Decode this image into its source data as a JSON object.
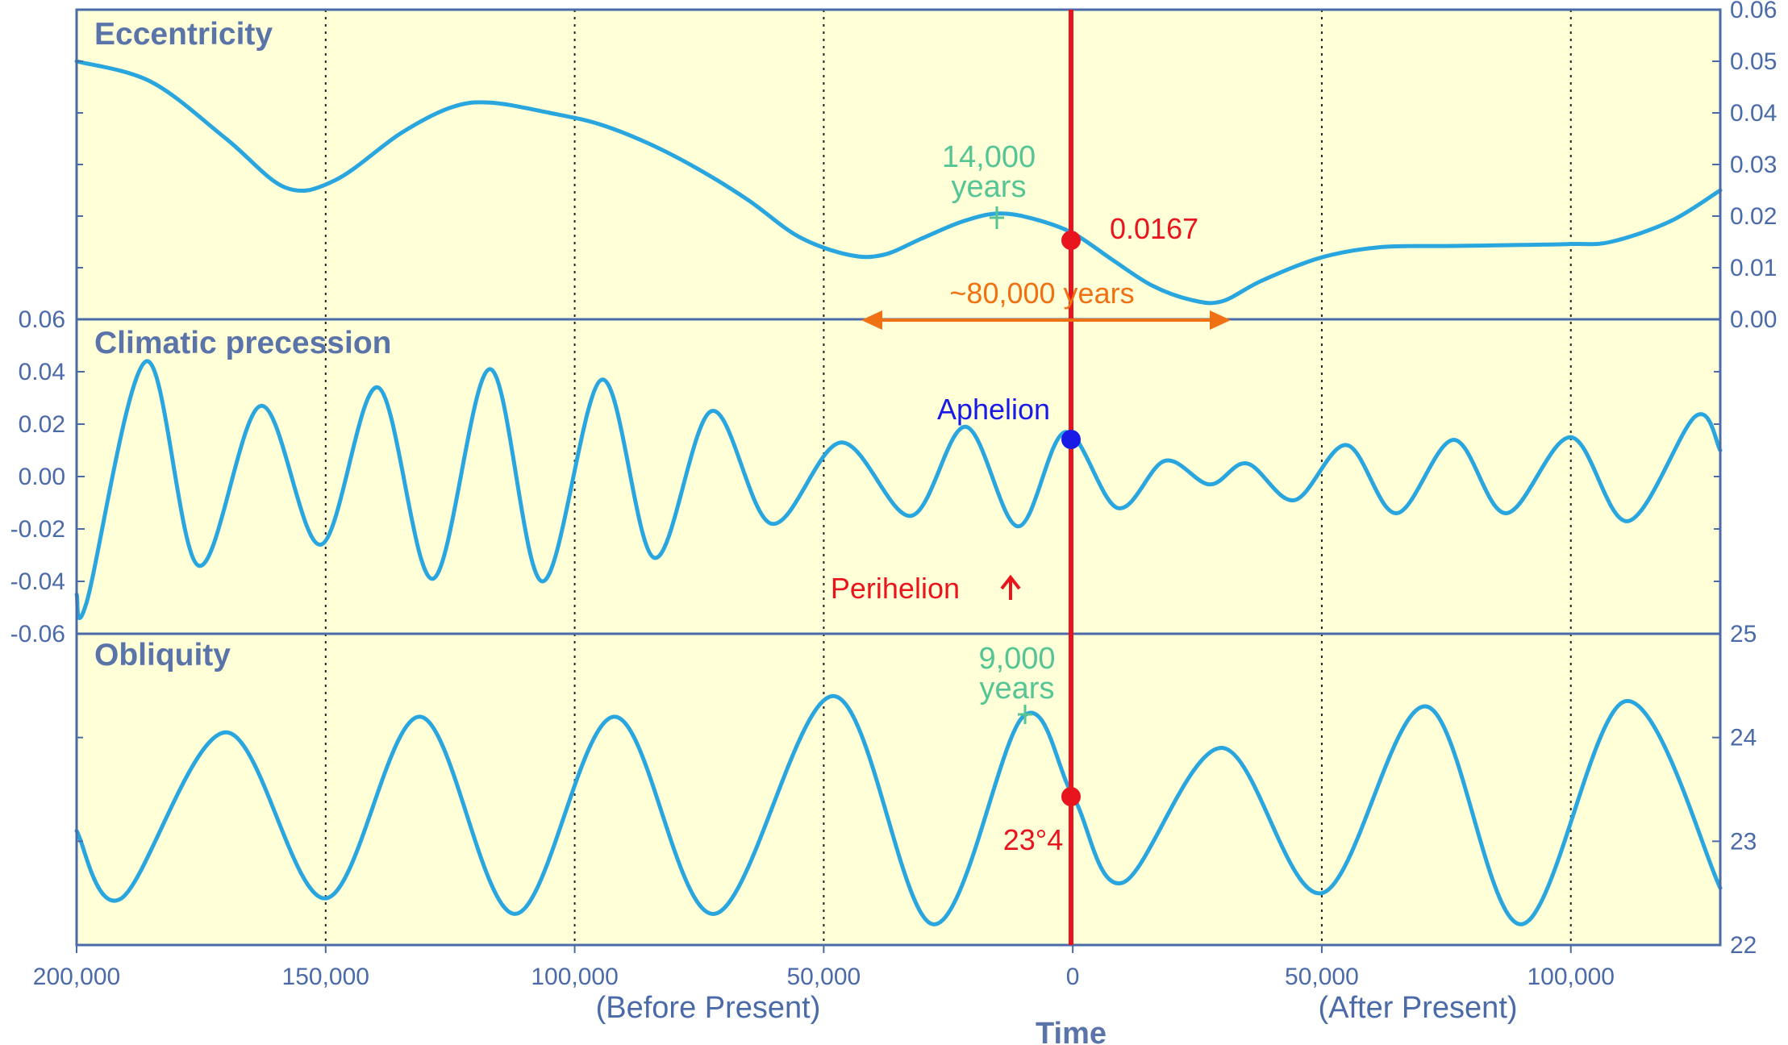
{
  "chart_data": {
    "type": "line",
    "x_axis": {
      "title": "Time",
      "range": [
        -200000,
        130000
      ],
      "ticks": [
        -200000,
        -150000,
        -100000,
        -50000,
        0,
        50000,
        100000
      ],
      "tick_labels": [
        "200,000",
        "150,000",
        "100,000",
        "50,000",
        "0",
        "50,000",
        "100,000"
      ],
      "captions": [
        "(Before Present)",
        "(After Present)"
      ],
      "grid": "dotted vertical at each tick"
    },
    "present_marker": {
      "x": 0,
      "color": "#e8141e"
    },
    "panels": [
      {
        "name": "Eccentricity",
        "axis_side": "right",
        "ylim": [
          0.0,
          0.06
        ],
        "ticks": [
          0.0,
          0.01,
          0.02,
          0.03,
          0.04,
          0.05,
          0.06
        ],
        "tick_labels": [
          "0.00",
          "0.01",
          "0.02",
          "0.03",
          "0.04",
          "0.05",
          "0.06"
        ],
        "series": {
          "x": [
            -200000,
            -185000,
            -170000,
            -158000,
            -148000,
            -135000,
            -125000,
            -117000,
            -105000,
            -95000,
            -85000,
            -75000,
            -65000,
            -55000,
            -45000,
            -38000,
            -30000,
            -22000,
            -15000,
            -8000,
            0,
            8000,
            16000,
            24000,
            30000,
            38000,
            50000,
            62000,
            75000,
            90000,
            100000,
            108000,
            120000,
            130000
          ],
          "y": [
            0.05,
            0.046,
            0.035,
            0.0255,
            0.027,
            0.036,
            0.041,
            0.042,
            0.04,
            0.0378,
            0.034,
            0.029,
            0.023,
            0.016,
            0.0125,
            0.0125,
            0.0158,
            0.019,
            0.0205,
            0.0195,
            0.0167,
            0.0115,
            0.0065,
            0.0037,
            0.0035,
            0.0075,
            0.012,
            0.014,
            0.0142,
            0.0144,
            0.0146,
            0.015,
            0.019,
            0.025
          ]
        },
        "annotations": [
          {
            "text": "14,000",
            "x": -16000,
            "y": 0.0258
          },
          {
            "text": "years",
            "x": -16000,
            "y": 0.0258
          },
          {
            "text": "0.0167",
            "x": 0,
            "y": 0.0167,
            "role": "present-value"
          },
          {
            "text": "~80,000 years",
            "from": -41000,
            "to": 31000,
            "role": "span-arrow"
          }
        ]
      },
      {
        "name": "Climatic precession",
        "axis_side": "left",
        "ylim": [
          -0.06,
          0.06
        ],
        "ticks": [
          -0.06,
          -0.04,
          -0.02,
          0.0,
          0.02,
          0.04,
          0.06
        ],
        "tick_labels": [
          "-0.06",
          "-0.04",
          "-0.02",
          "0.00",
          "0.02",
          "0.04",
          "0.06"
        ],
        "series": {
          "x": [
            -200000,
            -198000,
            -186000,
            -175500,
            -163000,
            -151000,
            -139500,
            -128500,
            -117000,
            -106500,
            -94500,
            -84000,
            -72500,
            -60500,
            -46500,
            -32500,
            -21500,
            -11000,
            -1500,
            9000,
            18500,
            27500,
            35000,
            44500,
            55000,
            65000,
            76500,
            87000,
            100000,
            111500,
            125000,
            130000
          ],
          "y": [
            -0.045,
            -0.048,
            0.044,
            -0.034,
            0.027,
            -0.026,
            0.034,
            -0.039,
            0.041,
            -0.04,
            0.037,
            -0.031,
            0.025,
            -0.018,
            0.013,
            -0.015,
            0.019,
            -0.019,
            0.017,
            -0.012,
            0.006,
            -0.003,
            0.005,
            -0.009,
            0.012,
            -0.014,
            0.014,
            -0.014,
            0.015,
            -0.017,
            0.023,
            0.01
          ]
        },
        "annotations": [
          {
            "text": "Aphelion",
            "x": 0,
            "y": 0.014
          },
          {
            "text": "Perihelion",
            "arrow": "up"
          }
        ]
      },
      {
        "name": "Obliquity",
        "axis_side": "right",
        "ylim": [
          22.0,
          25.0
        ],
        "ticks": [
          22,
          23,
          24,
          25
        ],
        "tick_labels": [
          "22",
          "23",
          "24",
          "25"
        ],
        "series": {
          "x": [
            -200000,
            -191000,
            -170000,
            -150000,
            -131000,
            -112000,
            -92000,
            -72000,
            -48000,
            -28000,
            -10000,
            0,
            10000,
            30000,
            50000,
            71000,
            90000,
            111000,
            130000
          ],
          "y": [
            23.1,
            22.45,
            24.05,
            22.45,
            24.2,
            22.3,
            24.2,
            22.3,
            24.4,
            22.2,
            24.2,
            23.44,
            22.6,
            23.9,
            22.5,
            24.3,
            22.2,
            24.35,
            22.55
          ]
        },
        "annotations": [
          {
            "text": "9,000",
            "x": -9000,
            "y": 24.1
          },
          {
            "text": "years",
            "x": -9000,
            "y": 24.1
          },
          {
            "text": "23°4",
            "x": 0,
            "y": 23.44,
            "role": "present-value"
          }
        ]
      }
    ]
  }
}
